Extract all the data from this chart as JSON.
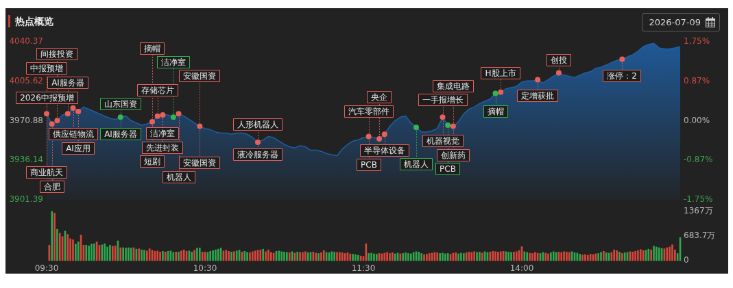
{
  "chart_data": [
    {
      "type": "area",
      "title": "热点概览",
      "subtitle": "2026-07-09",
      "categories": [
        null,
        null,
        null,
        null,
        null,
        null,
        null,
        null,
        null,
        null,
        null,
        null,
        null,
        null,
        null,
        null,
        null,
        null,
        null,
        null,
        null,
        null,
        null,
        null,
        null,
        null,
        null,
        null,
        null,
        null,
        null,
        null,
        null,
        null,
        null,
        null,
        null,
        null,
        null,
        null,
        null,
        null,
        null,
        null,
        null,
        null,
        null,
        null,
        null,
        null,
        null,
        null,
        null,
        null,
        null,
        null,
        null,
        null,
        null,
        null,
        null,
        null,
        null,
        null,
        null,
        null,
        null,
        null,
        null,
        null,
        null,
        null,
        null,
        null,
        null,
        null,
        null,
        null,
        null,
        null,
        null,
        null,
        null,
        null,
        null,
        null,
        null,
        null,
        null,
        null,
        null,
        null,
        null,
        null,
        null,
        null,
        null,
        null,
        null,
        null,
        null,
        null,
        null,
        null,
        null,
        null,
        null,
        null,
        null,
        null,
        null,
        null,
        null,
        null,
        null,
        null,
        null,
        null,
        null,
        null,
        null
      ],
      "ylim": [
        3901.39,
        4040.37
      ],
      "yticks": [
        3901.39,
        3936.14,
        3970.88,
        4005.62,
        4040.37
      ],
      "y2lim": [
        -1.75,
        1.75
      ],
      "y2ticks": [
        {
          "value": -1.75,
          "label": "-1.75%"
        },
        {
          "value": -0.87,
          "label": "-0.87%"
        },
        {
          "value": 0,
          "label": "0.00%"
        },
        {
          "value": 0.87,
          "label": "0.87%"
        },
        {
          "value": 1.75,
          "label": "1.75%"
        }
      ],
      "series": [
        {
          "color": "#1f5fa3",
          "values": [
            3977,
            3968,
            3971,
            3976,
            3977,
            3982,
            3979,
            3983,
            3981,
            3979,
            3977,
            3975,
            3973,
            3972,
            3974,
            3975,
            3971,
            3969,
            3967,
            3968,
            3970,
            3975,
            3976,
            3976,
            3974,
            3977,
            3975,
            3972,
            3969,
            3966,
            3964,
            3963,
            3961,
            3960,
            3960,
            3959,
            3960,
            3960,
            3959,
            3956,
            3952,
            3954,
            3957,
            3956,
            3953,
            3950,
            3948,
            3947,
            3949,
            3948,
            3945,
            3945,
            3944,
            3942,
            3941,
            3940,
            3946,
            3950,
            3953,
            3954,
            3956,
            3957,
            3956,
            3955,
            3959,
            3966,
            3971,
            3974,
            3975,
            3969,
            3965,
            3961,
            3961,
            3962,
            3964,
            3974,
            3967,
            3966,
            3970,
            3977,
            3981,
            3983,
            3986,
            3988,
            3990,
            3995,
            3996,
            3999,
            4000,
            4001,
            4005,
            4006,
            4006,
            4007,
            4004,
            4007,
            4010,
            4013,
            4011,
            4010,
            4009,
            4011,
            4013,
            4014,
            4017,
            4018,
            4020,
            4022,
            4024,
            4025,
            4027,
            4029,
            4032,
            4036,
            4038,
            4039,
            4035,
            4034,
            4034,
            4035,
            4036
          ]
        },
        {
          "type": "scatter",
          "color": "#e8605a",
          "values": [
            3977,
            3968,
            3971,
            null,
            3977,
            3982,
            3979,
            null,
            null,
            null,
            null,
            null,
            null,
            null,
            null,
            null,
            null,
            null,
            null,
            null,
            3970,
            3975,
            3976,
            null,
            null,
            3977,
            null,
            null,
            null,
            3966,
            null,
            null,
            null,
            null,
            null,
            null,
            null,
            null,
            null,
            null,
            3952,
            null,
            null,
            null,
            null,
            null,
            null,
            null,
            null,
            null,
            null,
            null,
            null,
            null,
            null,
            null,
            null,
            null,
            null,
            null,
            null,
            3957,
            null,
            3955,
            3959,
            null,
            null,
            null,
            null,
            null,
            null,
            null,
            null,
            null,
            null,
            3974,
            null,
            3966,
            null,
            null,
            null,
            null,
            null,
            null,
            null,
            null,
            3996,
            null,
            null,
            null,
            null,
            null,
            null,
            4007,
            null,
            null,
            null,
            4013,
            null,
            null,
            null,
            null,
            null,
            null,
            null,
            null,
            null,
            null,
            null,
            4025,
            null,
            null,
            null,
            null,
            null,
            null,
            null,
            null,
            null,
            null,
            null
          ]
        },
        {
          "type": "scatter",
          "color": "#34b54f",
          "values": [
            null,
            null,
            null,
            null,
            null,
            null,
            null,
            null,
            null,
            null,
            null,
            null,
            null,
            null,
            3974,
            null,
            null,
            null,
            null,
            null,
            null,
            null,
            null,
            null,
            3974,
            null,
            null,
            null,
            null,
            null,
            null,
            null,
            null,
            null,
            null,
            null,
            null,
            null,
            null,
            null,
            null,
            null,
            null,
            null,
            null,
            null,
            null,
            null,
            null,
            null,
            null,
            null,
            null,
            null,
            null,
            null,
            null,
            null,
            null,
            null,
            null,
            null,
            null,
            null,
            null,
            null,
            null,
            null,
            null,
            null,
            3965,
            null,
            null,
            null,
            null,
            null,
            3967,
            null,
            null,
            null,
            null,
            null,
            null,
            null,
            null,
            3995,
            null,
            null,
            null,
            null,
            null,
            null,
            null,
            null,
            null,
            null,
            null,
            null,
            null,
            null,
            null,
            null,
            null,
            null,
            null,
            null,
            null,
            null,
            null,
            null,
            null,
            null,
            null,
            null,
            null,
            null,
            null,
            null,
            null,
            null,
            null
          ]
        }
      ],
      "annotations": [
        {
          "text": "中报预增",
          "y": 3977
        },
        {
          "text": "商业航天",
          "y": 3977
        },
        {
          "text": "2026中报预增",
          "y": 3977
        },
        {
          "text": "合肥",
          "y": 3968
        },
        {
          "text": "间接投资",
          "y": 3971
        },
        {
          "text": "AI服务器",
          "y": 3977
        },
        {
          "text": "供应链物流",
          "y": 3982
        },
        {
          "text": "AI应用",
          "y": 3979
        },
        {
          "text": "山东国资",
          "y": 3974
        },
        {
          "text": "AI服务器",
          "y": 3974
        },
        {
          "text": "短剧",
          "y": 3970
        },
        {
          "text": "摘帽",
          "y": 3970
        },
        {
          "text": "存储芯片",
          "y": 3975
        },
        {
          "text": "先进封装",
          "y": 3976
        },
        {
          "text": "洁净室",
          "y": 3976
        },
        {
          "text": "洁净室",
          "y": 3974
        },
        {
          "text": "机器人",
          "y": 3977
        },
        {
          "text": "安徽国资",
          "y": 3966
        },
        {
          "text": "安徽国资",
          "y": 3966
        },
        {
          "text": "人形机器人",
          "y": 3952
        },
        {
          "text": "液冷服务器",
          "y": 3952
        },
        {
          "text": "汽车零部件",
          "y": 3957
        },
        {
          "text": "PCB",
          "y": 3957
        },
        {
          "text": "央企",
          "y": 3955
        },
        {
          "text": "半导体设备",
          "y": 3959
        },
        {
          "text": "机器人",
          "y": 3965
        },
        {
          "text": "一手报增长",
          "y": 3974
        },
        {
          "text": "机器视觉",
          "y": 3974
        },
        {
          "text": "PCB",
          "y": 3967
        },
        {
          "text": "集成电路",
          "y": 3966
        },
        {
          "text": "创新药",
          "y": 3966
        },
        {
          "text": "摘帽",
          "y": 3995
        },
        {
          "text": "H股上市",
          "y": 3996
        },
        {
          "text": "定增获批",
          "y": 4007
        },
        {
          "text": "创投",
          "y": 4013
        },
        {
          "text": "涨停：2",
          "y": 4025
        }
      ]
    },
    {
      "type": "bar",
      "categories": [
        "09:30",
        null,
        null,
        null,
        null,
        null,
        null,
        null,
        null,
        null,
        null,
        null,
        null,
        null,
        null,
        null,
        null,
        null,
        null,
        null,
        null,
        null,
        null,
        null,
        null,
        null,
        null,
        null,
        null,
        null,
        null,
        null,
        null,
        null,
        null,
        null,
        null,
        null,
        null,
        null,
        null,
        null,
        null,
        null,
        null,
        null,
        null,
        null,
        null,
        null,
        null,
        null,
        null,
        null,
        null,
        null,
        null,
        null,
        null,
        null,
        "10:30",
        null,
        null,
        null,
        null,
        null,
        null,
        null,
        null,
        null,
        null,
        null,
        null,
        null,
        null,
        null,
        null,
        null,
        null,
        null,
        null,
        null,
        null,
        null,
        null,
        null,
        null,
        null,
        null,
        null,
        null,
        null,
        null,
        null,
        null,
        null,
        null,
        null,
        null,
        null,
        null,
        null,
        null,
        null,
        null,
        null,
        null,
        null,
        null,
        null,
        null,
        null,
        null,
        null,
        null,
        null,
        null,
        null,
        null,
        null,
        "11:30",
        null,
        null,
        null,
        null,
        null,
        null,
        null,
        null,
        null,
        null,
        null,
        null,
        null,
        null,
        null,
        null,
        null,
        null,
        null,
        null,
        null,
        null,
        null,
        null,
        null,
        null,
        null,
        null,
        null,
        null,
        null,
        null,
        null,
        null,
        null,
        null,
        null,
        null,
        null,
        null,
        null,
        null,
        null,
        null,
        null,
        null,
        null,
        null,
        null,
        null,
        null,
        null,
        null,
        null,
        null,
        null,
        null,
        null,
        null,
        "14:00",
        null,
        null,
        null,
        null,
        null,
        null,
        null,
        null,
        null,
        null,
        null,
        null,
        null,
        null,
        null,
        null,
        null,
        null,
        null,
        null,
        null,
        null,
        null,
        null,
        null,
        null,
        null,
        null,
        null,
        null,
        null,
        null,
        null,
        null,
        null,
        null,
        null,
        null,
        null,
        null,
        null,
        null,
        null,
        null,
        null,
        null,
        null,
        null,
        null,
        null,
        null,
        null,
        null,
        null,
        null,
        null,
        null,
        null,
        null,
        null
      ],
      "y2lim": [
        0,
        1367
      ],
      "y2ticks": [
        0,
        {
          "value": 683.7,
          "label": "683.7万"
        },
        {
          "value": 1367,
          "label": "1367万"
        }
      ],
      "series": [
        {
          "axis": "y2",
          "values": [
            null,
            430,
            1367,
            1320,
            870,
            760,
            670,
            820,
            730,
            610,
            580,
            460,
            520,
            710,
            430,
            430,
            410,
            460,
            470,
            520,
            430,
            440,
            470,
            380,
            430,
            400,
            410,
            550,
            360,
            360,
            350,
            360,
            350,
            360,
            320,
            330,
            300,
            290,
            270,
            330,
            290,
            260,
            270,
            240,
            260,
            240,
            260,
            270,
            230,
            240,
            240,
            270,
            300,
            260,
            270,
            240,
            290,
            350,
            350,
            240,
            240,
            230,
            260,
            280,
            300,
            320,
            350,
            270,
            290,
            260,
            240,
            250,
            270,
            290,
            240,
            260,
            230,
            220,
            250,
            270,
            290,
            300,
            320,
            250,
            300,
            230,
            210,
            260,
            270,
            250,
            240,
            230,
            220,
            250,
            210,
            240,
            230,
            230,
            250,
            220,
            230,
            240,
            210,
            200,
            220,
            280,
            230,
            220,
            250,
            240,
            230,
            230,
            220,
            200,
            220,
            190,
            180,
            170,
            150,
            130,
            120,
            470,
            200,
            210,
            190,
            180,
            200,
            190,
            210,
            230,
            200,
            220,
            190,
            210,
            190,
            200,
            220,
            200,
            190,
            230,
            250,
            240,
            200,
            170,
            180,
            200,
            210,
            230,
            220,
            200,
            210,
            190,
            200,
            180,
            210,
            220,
            190,
            210,
            200,
            220,
            240,
            230,
            250,
            230,
            240,
            210,
            250,
            230,
            240,
            260,
            250,
            240,
            250,
            260,
            250,
            240,
            230,
            240,
            250,
            280,
            390,
            250,
            230,
            210,
            200,
            230,
            210,
            200,
            230,
            210,
            190,
            220,
            250,
            230,
            240,
            230,
            250,
            240,
            230,
            250,
            220,
            210,
            180,
            160,
            170,
            150,
            180,
            170,
            190,
            200,
            230,
            260,
            220,
            210,
            230,
            300,
            280,
            240,
            200,
            220,
            230,
            250,
            240,
            260,
            280,
            310,
            280,
            290,
            320,
            300,
            400,
            380,
            360,
            340,
            330,
            360,
            380,
            440,
            300,
            200,
            640
          ],
          "colors": [
            null,
            "#d8473a",
            "#2fa84f",
            "#d8473a",
            "#2fa84f",
            "#d8473a",
            "#d8473a",
            "#2fa84f",
            "#d8473a",
            "#d8473a",
            "#d8473a",
            "#2fa84f",
            "#2fa84f",
            "#d8473a",
            "#d8473a",
            "#2fa84f",
            "#2fa84f",
            "#2fa84f",
            "#2fa84f",
            "#d8473a",
            "#d8473a",
            "#2fa84f",
            "#2fa84f",
            "#2fa84f",
            "#2fa84f",
            "#d8473a",
            "#d8473a",
            "#2fa84f",
            "#d8473a",
            "#2fa84f",
            "#2fa84f",
            "#2fa84f",
            "#2fa84f",
            "#d8473a",
            "#2fa84f",
            "#d8473a",
            "#2fa84f",
            "#2fa84f",
            "#d8473a",
            "#d8473a",
            "#d8473a",
            "#d8473a",
            "#d8473a",
            "#d8473a",
            "#2fa84f",
            "#d8473a",
            "#2fa84f",
            "#2fa84f",
            "#2fa84f",
            "#d8473a",
            "#2fa84f",
            "#d8473a",
            "#d8473a",
            "#d8473a",
            "#2fa84f",
            "#2fa84f",
            "#d8473a",
            "#2fa84f",
            "#2fa84f",
            "#d8473a",
            "#d8473a",
            "#2fa84f",
            "#2fa84f",
            "#2fa84f",
            "#2fa84f",
            "#2fa84f",
            "#2fa84f",
            "#d8473a",
            "#d8473a",
            "#d8473a",
            "#2fa84f",
            "#d8473a",
            "#2fa84f",
            "#2fa84f",
            "#d8473a",
            "#2fa84f",
            "#2fa84f",
            "#d8473a",
            "#d8473a",
            "#d8473a",
            "#d8473a",
            "#d8473a",
            "#2fa84f",
            "#d8473a",
            "#d8473a",
            "#d8473a",
            "#d8473a",
            "#2fa84f",
            "#2fa84f",
            "#2fa84f",
            "#2fa84f",
            "#2fa84f",
            "#d8473a",
            "#2fa84f",
            "#d8473a",
            "#2fa84f",
            "#d8473a",
            "#d8473a",
            "#d8473a",
            "#2fa84f",
            "#2fa84f",
            "#d8473a",
            "#d8473a",
            "#2fa84f",
            "#d8473a",
            "#d8473a",
            "#2fa84f",
            "#2fa84f",
            "#2fa84f",
            "#2fa84f",
            "#d8473a",
            "#d8473a",
            "#d8473a",
            "#d8473a",
            "#d8473a",
            "#d8473a",
            "#2fa84f",
            "#2fa84f",
            "#2fa84f",
            "#d8473a",
            "#d8473a",
            "#d8473a",
            "#2fa84f",
            "#2fa84f",
            "#2fa84f",
            "#2fa84f",
            "#d8473a",
            "#d8473a",
            "#d8473a",
            "#d8473a",
            "#d8473a",
            "#d8473a",
            "#2fa84f",
            "#2fa84f",
            "#d8473a",
            "#2fa84f",
            "#2fa84f",
            "#2fa84f",
            "#2fa84f",
            "#2fa84f",
            "#2fa84f",
            "#2fa84f",
            "#2fa84f",
            "#d8473a",
            "#d8473a",
            "#d8473a",
            "#d8473a",
            "#d8473a",
            "#d8473a",
            "#2fa84f",
            "#2fa84f",
            "#2fa84f",
            "#2fa84f",
            "#d8473a",
            "#d8473a",
            "#d8473a",
            "#2fa84f",
            "#2fa84f",
            "#2fa84f",
            "#d8473a",
            "#d8473a",
            "#d8473a",
            "#d8473a",
            "#2fa84f",
            "#2fa84f",
            "#d8473a",
            "#2fa84f",
            "#2fa84f",
            "#d8473a",
            "#d8473a",
            "#d8473a",
            "#d8473a",
            "#d8473a",
            "#d8473a",
            "#2fa84f",
            "#2fa84f",
            "#2fa84f",
            "#d8473a",
            "#d8473a",
            "#d8473a",
            "#d8473a",
            "#2fa84f",
            "#2fa84f",
            "#d8473a",
            "#d8473a",
            "#d8473a",
            "#d8473a",
            "#2fa84f",
            "#2fa84f",
            "#d8473a",
            "#d8473a",
            "#2fa84f",
            "#2fa84f",
            "#2fa84f",
            "#d8473a",
            "#d8473a",
            "#d8473a",
            "#d8473a",
            "#d8473a",
            "#2fa84f",
            "#2fa84f",
            "#2fa84f",
            "#2fa84f",
            "#d8473a",
            "#d8473a",
            "#d8473a",
            "#d8473a",
            "#d8473a",
            "#d8473a",
            "#2fa84f",
            "#2fa84f",
            "#d8473a",
            "#2fa84f",
            "#2fa84f",
            "#d8473a",
            "#d8473a",
            "#d8473a",
            "#2fa84f",
            "#d8473a",
            "#2fa84f",
            "#2fa84f",
            "#d8473a",
            "#d8473a",
            "#d8473a",
            "#d8473a",
            "#d8473a",
            "#d8473a",
            "#2fa84f",
            "#2fa84f",
            "#d8473a",
            "#2fa84f",
            "#2fa84f",
            "#2fa84f",
            "#2fa84f",
            "#d8473a",
            "#d8473a",
            "#d8473a",
            "#d8473a",
            "#d8473a",
            "#2fa84f",
            "#2fa84f"
          ]
        }
      ]
    }
  ]
}
